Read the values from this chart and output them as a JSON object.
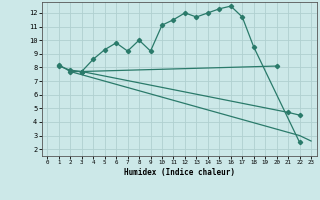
{
  "line1_x": [
    1,
    2,
    3,
    4,
    5,
    6,
    7,
    8,
    9,
    10,
    11,
    12,
    13,
    14,
    15,
    16,
    17,
    18,
    22
  ],
  "line1_y": [
    8.2,
    7.7,
    7.7,
    8.6,
    9.3,
    9.8,
    9.2,
    10.0,
    9.2,
    11.1,
    11.5,
    12.0,
    11.7,
    12.0,
    12.3,
    12.5,
    11.7,
    9.5,
    2.5
  ],
  "line2_x": [
    1,
    2,
    3,
    20
  ],
  "line2_y": [
    8.1,
    7.8,
    7.7,
    8.1
  ],
  "line3_x": [
    3,
    21,
    22
  ],
  "line3_y": [
    7.7,
    4.7,
    4.5
  ],
  "line4_x": [
    2,
    22,
    23
  ],
  "line4_y": [
    7.7,
    3.0,
    2.6
  ],
  "color": "#2a7a6a",
  "bg_color": "#cce8e8",
  "grid_color": "#b0d0d0",
  "xlabel": "Humidex (Indice chaleur)",
  "xlim": [
    -0.5,
    23.5
  ],
  "ylim": [
    1.5,
    12.8
  ],
  "yticks": [
    2,
    3,
    4,
    5,
    6,
    7,
    8,
    9,
    10,
    11,
    12
  ],
  "xticks": [
    0,
    1,
    2,
    3,
    4,
    5,
    6,
    7,
    8,
    9,
    10,
    11,
    12,
    13,
    14,
    15,
    16,
    17,
    18,
    19,
    20,
    21,
    22,
    23
  ]
}
